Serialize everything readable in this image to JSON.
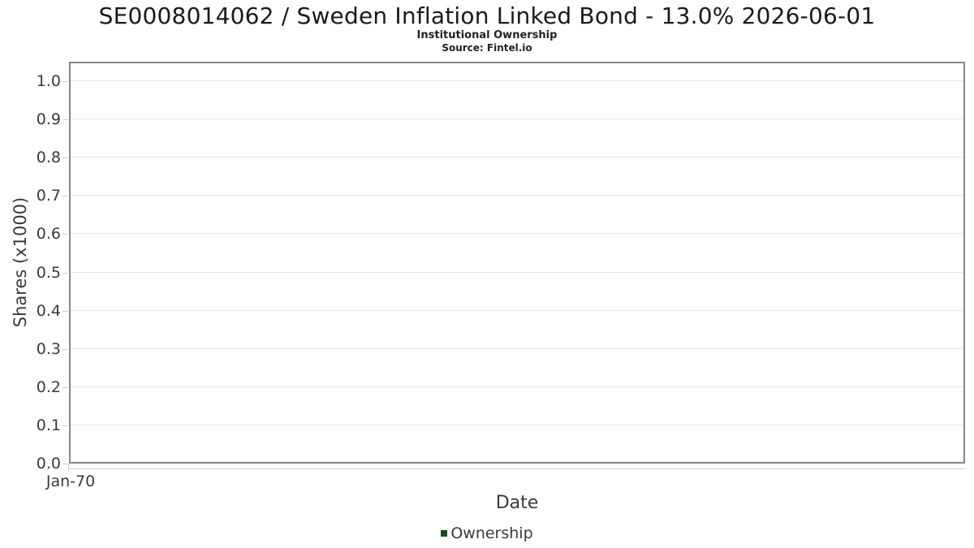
{
  "header": {
    "title": "SE0008014062 / Sweden Inflation Linked Bond - 13.0% 2026-06-01",
    "subtitle": "Institutional Ownership",
    "source": "Source: Fintel.io"
  },
  "chart_data": {
    "type": "line",
    "title": "SE0008014062 / Sweden Inflation Linked Bond - 13.0% 2026-06-01",
    "subtitle": "Institutional Ownership",
    "source": "Source: Fintel.io",
    "xlabel": "Date",
    "ylabel": "Shares (x1000)",
    "x_ticks": [
      "Jan-70"
    ],
    "y_ticks": [
      0.0,
      0.1,
      0.2,
      0.3,
      0.4,
      0.5,
      0.6,
      0.7,
      0.8,
      0.9,
      1.0
    ],
    "ylim": [
      0.0,
      1.05
    ],
    "xlim_label": "Jan-70",
    "grid": true,
    "legend_position": "bottom",
    "series": [
      {
        "name": "Ownership",
        "color": "#1d4a21",
        "x": [],
        "values": []
      }
    ]
  },
  "colors": {
    "gridline": "#e6e6e6",
    "plot_border": "#868686",
    "axis_line": "#cccccc",
    "tick_text": "#3a3a3a",
    "title_text": "#1a1a1a",
    "legend_swatch": "#1d4a21"
  }
}
